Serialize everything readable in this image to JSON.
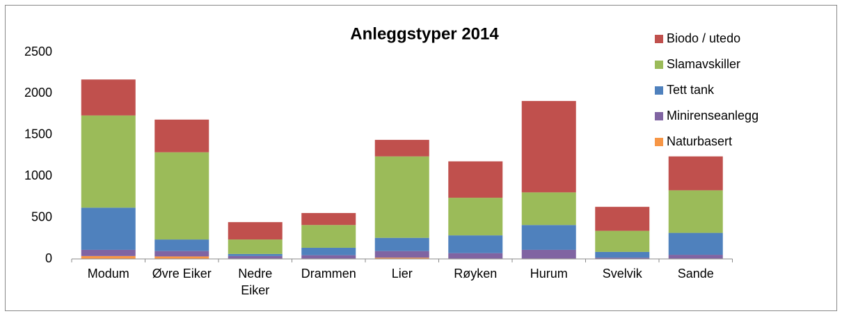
{
  "chart_data": {
    "type": "stacked_bar",
    "title": "Anleggstyper 2014",
    "categories": [
      "Modum",
      "Øvre Eiker",
      "Nedre Eiker",
      "Drammen",
      "Lier",
      "Røyken",
      "Hurum",
      "Svelvik",
      "Sande"
    ],
    "series": [
      {
        "name": "Naturbasert",
        "color": "#f79646",
        "values": [
          35,
          30,
          5,
          5,
          15,
          5,
          5,
          0,
          5
        ]
      },
      {
        "name": "Minirenseanlegg",
        "color": "#8064a2",
        "values": [
          75,
          65,
          30,
          40,
          80,
          65,
          105,
          15,
          45
        ]
      },
      {
        "name": "Tett tank",
        "color": "#4f81bd",
        "values": [
          510,
          140,
          25,
          90,
          160,
          215,
          300,
          70,
          265
        ]
      },
      {
        "name": "Slamavskiller",
        "color": "#9bbb59",
        "values": [
          1115,
          1055,
          175,
          275,
          985,
          455,
          395,
          255,
          515
        ]
      },
      {
        "name": "Biodo / utedo",
        "color": "#c0504d",
        "values": [
          435,
          395,
          210,
          145,
          200,
          440,
          1105,
          290,
          410
        ]
      }
    ],
    "ylim": [
      0,
      2500
    ],
    "yticks": [
      0,
      500,
      1000,
      1500,
      2000,
      2500
    ],
    "grid": false,
    "legend": "right"
  }
}
